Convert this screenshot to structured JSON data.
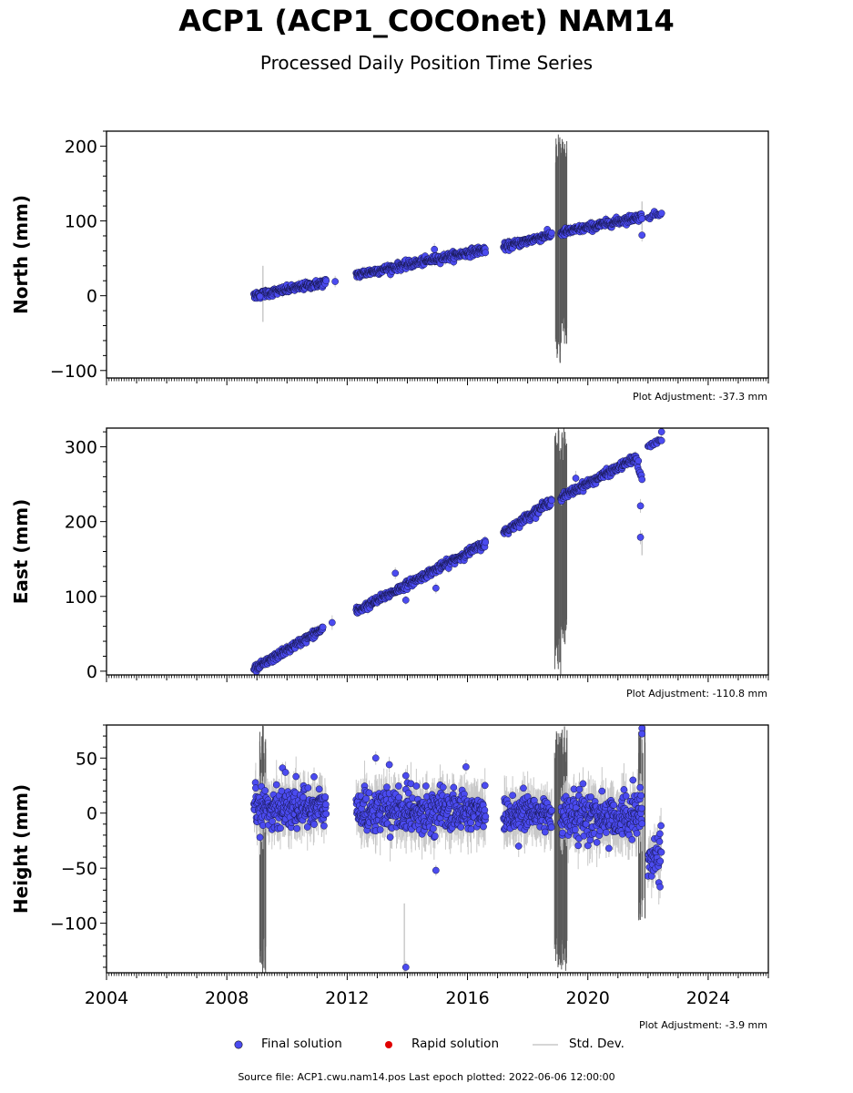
{
  "title": "ACP1 (ACP1_COCOnet) NAM14",
  "subtitle": "Processed Daily Position Time Series",
  "chart_data": [
    {
      "type": "scatter",
      "ylabel": "North (mm)",
      "xlim": [
        2004,
        2026
      ],
      "ylim": [
        -110,
        220
      ],
      "yticks": [
        -100,
        0,
        100,
        200
      ],
      "adjustment": "Plot Adjustment: -37.3 mm",
      "segments": [
        {
          "x": [
            2008.9,
            2011.3
          ],
          "y": [
            0,
            18
          ],
          "noise": 2.5,
          "spacing": 0.012
        },
        {
          "x": [
            2012.3,
            2016.6
          ],
          "y": [
            28,
            62
          ],
          "noise": 2.5,
          "spacing": 0.012
        },
        {
          "x": [
            2017.2,
            2018.8
          ],
          "y": [
            65,
            82
          ],
          "noise": 2.5,
          "spacing": 0.012
        },
        {
          "x": [
            2019.1,
            2021.8
          ],
          "y": [
            84,
            106
          ],
          "noise": 2.5,
          "spacing": 0.012
        },
        {
          "x": [
            2022.0,
            2022.45
          ],
          "y": [
            106,
            110
          ],
          "noise": 2,
          "spacing": 0.03
        }
      ],
      "outliers": [
        [
          2009.1,
          -1
        ],
        [
          2014.9,
          62
        ],
        [
          2021.8,
          81
        ],
        [
          2011.6,
          19
        ]
      ],
      "spikes": [
        [
          2019.0,
          220,
          -95
        ],
        [
          2019.2,
          215,
          -65
        ],
        [
          2009.2,
          40,
          -35
        ],
        [
          2021.8,
          126,
          88
        ]
      ]
    },
    {
      "type": "scatter",
      "ylabel": "East (mm)",
      "xlim": [
        2004,
        2026
      ],
      "ylim": [
        -5,
        325
      ],
      "yticks": [
        0,
        100,
        200,
        300
      ],
      "adjustment": "Plot Adjustment: -110.8 mm",
      "segments": [
        {
          "x": [
            2008.9,
            2011.2
          ],
          "y": [
            2,
            57
          ],
          "noise": 2.5,
          "spacing": 0.012
        },
        {
          "x": [
            2012.3,
            2016.6
          ],
          "y": [
            80,
            171
          ],
          "noise": 2.5,
          "spacing": 0.012
        },
        {
          "x": [
            2017.2,
            2018.8
          ],
          "y": [
            185,
            228
          ],
          "noise": 2.5,
          "spacing": 0.012
        },
        {
          "x": [
            2019.1,
            2021.6
          ],
          "y": [
            232,
            285
          ],
          "noise": 2.5,
          "spacing": 0.012
        },
        {
          "x": [
            2021.6,
            2021.8
          ],
          "y": [
            285,
            255
          ],
          "noise": 3,
          "spacing": 0.02
        },
        {
          "x": [
            2022.0,
            2022.45
          ],
          "y": [
            300,
            310
          ],
          "noise": 2,
          "spacing": 0.03
        }
      ],
      "outliers": [
        [
          2011.5,
          65
        ],
        [
          2013.95,
          95
        ],
        [
          2014.95,
          111
        ],
        [
          2021.75,
          221
        ],
        [
          2021.75,
          179
        ],
        [
          2022.45,
          320
        ],
        [
          2013.6,
          131
        ],
        [
          2019.6,
          258
        ]
      ],
      "spikes": [
        [
          2019.0,
          325,
          -5
        ],
        [
          2019.2,
          325,
          35
        ],
        [
          2021.8,
          185,
          155
        ]
      ]
    },
    {
      "type": "scatter",
      "ylabel": "Height (mm)",
      "xlim": [
        2004,
        2026
      ],
      "ylim": [
        -145,
        80
      ],
      "yticks": [
        -100,
        -50,
        0,
        50
      ],
      "adjustment": "Plot Adjustment: -3.9 mm",
      "xticks": [
        "2004",
        "2008",
        "2012",
        "2016",
        "2020",
        "2024"
      ],
      "segments": [
        {
          "x": [
            2008.9,
            2011.3
          ],
          "y": [
            5,
            5
          ],
          "noise": 9,
          "spacing": 0.01
        },
        {
          "x": [
            2012.3,
            2016.6
          ],
          "y": [
            2,
            2
          ],
          "noise": 9,
          "spacing": 0.01
        },
        {
          "x": [
            2017.2,
            2018.8
          ],
          "y": [
            0,
            0
          ],
          "noise": 9,
          "spacing": 0.01
        },
        {
          "x": [
            2019.1,
            2021.8
          ],
          "y": [
            -3,
            -3
          ],
          "noise": 10,
          "spacing": 0.01
        },
        {
          "x": [
            2022.0,
            2022.45
          ],
          "y": [
            -42,
            -42
          ],
          "noise": 8,
          "spacing": 0.012
        }
      ],
      "outliers": [
        [
          2009.85,
          41
        ],
        [
          2009.95,
          37
        ],
        [
          2010.9,
          33
        ],
        [
          2012.95,
          50
        ],
        [
          2013.4,
          44
        ],
        [
          2013.95,
          34
        ],
        [
          2013.95,
          -140
        ],
        [
          2014.95,
          -52
        ],
        [
          2015.95,
          42
        ],
        [
          2021.8,
          77
        ],
        [
          2021.8,
          72
        ],
        [
          2022.4,
          -67
        ],
        [
          2017.7,
          -30
        ],
        [
          2020.7,
          -32
        ],
        [
          2021.5,
          30
        ]
      ],
      "spikes": [
        [
          2019.0,
          80,
          -145
        ],
        [
          2019.2,
          80,
          -145
        ],
        [
          2009.2,
          80,
          -145
        ],
        [
          2021.8,
          80,
          -100
        ],
        [
          2013.9,
          -82,
          -145
        ]
      ]
    }
  ],
  "legend": {
    "final_label": "Final solution",
    "rapid_label": "Rapid solution",
    "std_label": "Std. Dev.",
    "final_color": "#4b4bf0",
    "rapid_color": "#e00000",
    "std_color": "#c8c8c8"
  },
  "footer": "Source file: ACP1.cwu.nam14.pos  Last epoch plotted: 2022-06-06 12:00:00"
}
